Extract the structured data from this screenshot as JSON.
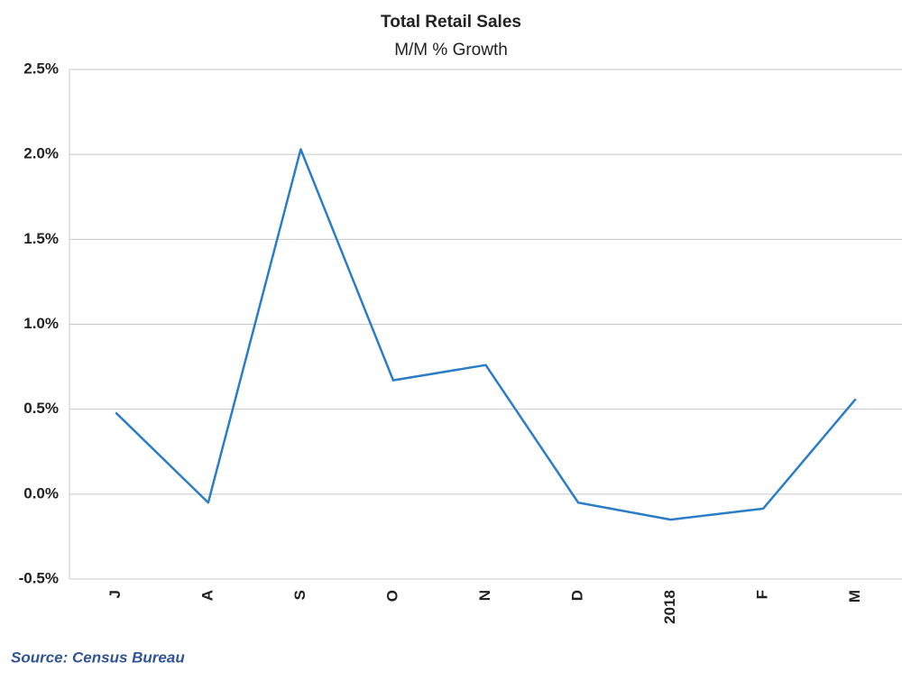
{
  "chart_data": {
    "type": "line",
    "title": "Total Retail Sales",
    "subtitle": "M/M % Growth",
    "categories": [
      "J",
      "A",
      "S",
      "O",
      "N",
      "D",
      "2018",
      "F",
      "M"
    ],
    "series": [
      {
        "name": "Total Retail Sales M/M % Growth",
        "color": "#2a7dc6",
        "values": [
          0.48,
          -0.05,
          2.03,
          0.67,
          0.76,
          -0.05,
          -0.15,
          -0.085,
          0.56
        ]
      }
    ],
    "ylim": [
      -0.5,
      2.5
    ],
    "yticks": [
      {
        "value": -0.5,
        "label": "-0.5%"
      },
      {
        "value": 0,
        "label": "0.0%"
      },
      {
        "value": 0.5,
        "label": "0.5%"
      },
      {
        "value": 1,
        "label": "1.0%"
      },
      {
        "value": 1.5,
        "label": "1.5%"
      },
      {
        "value": 2,
        "label": "2.0%"
      },
      {
        "value": 2.5,
        "label": "2.5%"
      }
    ],
    "grid": true,
    "source": "Source: Census Bureau"
  }
}
